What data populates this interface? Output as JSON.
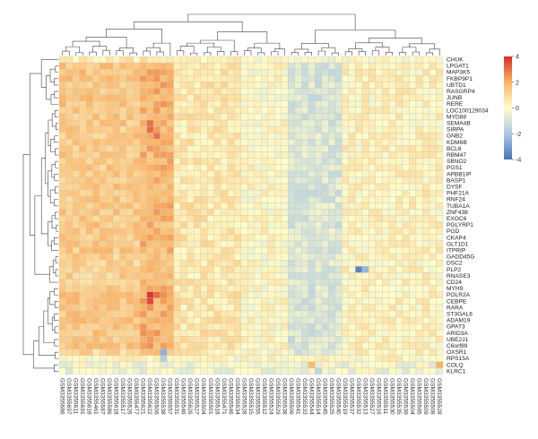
{
  "chart_data": {
    "type": "heatmap",
    "title": "",
    "rows": [
      "CHUK",
      "LPGAT1",
      "MAP3K5",
      "FKBP9P1",
      "UBTD1",
      "RASGRP4",
      "JUNB",
      "RERE",
      "LOC100129034",
      "MYD88",
      "SEMA4B",
      "SIRPA",
      "GNB2",
      "KDM6B",
      "BCL6",
      "RBM47",
      "SBNO2",
      "PGS1",
      "APBB1IP",
      "BASP1",
      "DYSF",
      "PHF21A",
      "RNF24",
      "TUBA1A",
      "ZNF438",
      "EXOC6",
      "PGLYRP1",
      "PGD",
      "CKAP4",
      "GLT1D1",
      "ITPRIP",
      "GADD45G",
      "DSC2",
      "PLP2",
      "RNASE3",
      "CD24",
      "MYH9",
      "POLR2A",
      "CEBPE",
      "RARA",
      "ST3GAL6",
      "ADAM19",
      "GPAT3",
      "ARID3A",
      "UBE2J1",
      "C6orf89",
      "OXSR1",
      "RPS15A",
      "COLQ",
      "KLRC1"
    ],
    "columns": [
      "GSM3355686",
      "GSM3355697",
      "GSM3355611",
      "GSM3355691",
      "GSM3355618",
      "GSM3355461",
      "GSM3355587",
      "GSM3355586",
      "GSM3355618",
      "GSM3355517",
      "GSM3355526",
      "GSM3355477",
      "GSM3355621",
      "GSM3355622",
      "GSM3355506",
      "GSM3355538",
      "GSM3355557",
      "GSM3355531",
      "GSM3355546",
      "GSM3355626",
      "GSM3355527",
      "GSM3355504",
      "GSM3355501",
      "GSM3355518",
      "GSM3355471",
      "GSM3355546",
      "GSM3355534",
      "GSM3355528",
      "GSM3355515",
      "GSM3355555",
      "GSM3355512",
      "GSM3355524",
      "GSM3355529",
      "GSM3355538",
      "GSM3355506",
      "GSM3355541",
      "GSM3355533",
      "GSM3355544",
      "GSM3355514",
      "GSM3355545",
      "GSM3355525",
      "GSM3355540",
      "GSM3355519",
      "GSM3355537",
      "GSM3355532",
      "GSM3355513",
      "GSM3355527",
      "GSM3355516",
      "GSM3355511",
      "GSM3355530",
      "GSM3355535",
      "GSM3355539",
      "GSM3355504",
      "GSM3355565",
      "GSM3355509",
      "GSM3355508",
      "GSM3355528"
    ],
    "scale": {
      "min": -4,
      "max": 4,
      "ticks": [
        4,
        2,
        0,
        -2,
        -4
      ]
    },
    "colors": {
      "low": "#4575b4",
      "lowMid": "#abc9e4",
      "mid": "#fffdc8",
      "highMid": "#fdb262",
      "high": "#d73027",
      "cellBorder": "#c8c8c8"
    },
    "col_blocks": [
      {
        "from": 0,
        "to": 12,
        "avg": 1.4
      },
      {
        "from": 12,
        "to": 17,
        "avg": 1.9
      },
      {
        "from": 17,
        "to": 27,
        "avg": 0.6
      },
      {
        "from": 27,
        "to": 34,
        "avg": 0.1
      },
      {
        "from": 34,
        "to": 42,
        "avg": -0.9
      },
      {
        "from": 42,
        "to": 57,
        "avg": 0.25
      }
    ],
    "row_blocks": [
      {
        "from": 0,
        "to": 1,
        "avg": -0.4
      },
      {
        "from": 1,
        "to": 8,
        "avg": 0.5
      },
      {
        "from": 8,
        "to": 31,
        "avg": 0.4
      },
      {
        "from": 31,
        "to": 36,
        "avg": 0.25
      },
      {
        "from": 36,
        "to": 46,
        "avg": 0.5
      },
      {
        "from": 46,
        "to": 48,
        "avg": 0.1
      },
      {
        "from": 48,
        "to": 50,
        "avg": -0.3
      }
    ],
    "highlights": [
      {
        "row": 37,
        "col": 13,
        "value": 3.9
      },
      {
        "row": 38,
        "col": 13,
        "value": 3.6
      },
      {
        "row": 37,
        "col": 14,
        "value": 3.1
      },
      {
        "row": 10,
        "col": 13,
        "value": 3.0
      },
      {
        "row": 11,
        "col": 13,
        "value": 3.1
      },
      {
        "row": 12,
        "col": 14,
        "value": 3.0
      },
      {
        "row": 33,
        "col": 44,
        "value": -3.6
      },
      {
        "row": 33,
        "col": 45,
        "value": -2.4
      },
      {
        "row": 46,
        "col": 15,
        "value": -2.6
      },
      {
        "row": 47,
        "col": 15,
        "value": -1.8
      },
      {
        "row": 48,
        "col": 56,
        "value": 2.0
      },
      {
        "row": 48,
        "col": 37,
        "value": 1.8
      },
      {
        "row": 49,
        "col": 38,
        "value": -1.5
      }
    ]
  }
}
